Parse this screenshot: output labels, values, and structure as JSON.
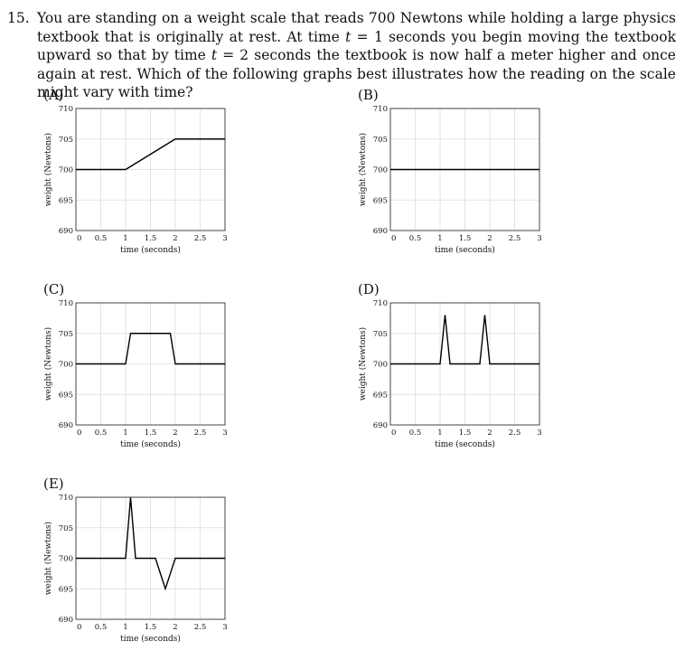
{
  "question": {
    "number": "15.",
    "text_parts": [
      "You are standing on a weight scale that reads 700 Newtons while holding a large physics textbook that is originally at rest. At time ",
      "t",
      " = 1 seconds you begin moving the textbook upward so that by time ",
      "t",
      " = 2 seconds the textbook is now half a meter higher and once again at rest. Which of the following graphs best illustrates how the reading on the scale might vary with time?"
    ]
  },
  "chart_data": [
    {
      "label": "(A)",
      "type": "line",
      "xlabel": "time (seconds)",
      "ylabel": "weight (Newtons)",
      "xlim": [
        0,
        3
      ],
      "ylim": [
        690,
        710
      ],
      "x_ticks": [
        "0",
        "0.5",
        "1",
        "1.5",
        "2",
        "2.5",
        "3"
      ],
      "y_ticks": [
        "690",
        "695",
        "700",
        "705",
        "710"
      ],
      "grid": true,
      "x": [
        0,
        1,
        2,
        3
      ],
      "y": [
        700,
        700,
        705,
        705
      ]
    },
    {
      "label": "(B)",
      "type": "line",
      "xlabel": "time (seconds)",
      "ylabel": "weight (Newtons)",
      "xlim": [
        0,
        3
      ],
      "ylim": [
        690,
        710
      ],
      "x_ticks": [
        "0",
        "0.5",
        "1",
        "1.5",
        "2",
        "2.5",
        "3"
      ],
      "y_ticks": [
        "690",
        "695",
        "700",
        "705",
        "710"
      ],
      "grid": true,
      "x": [
        0,
        3
      ],
      "y": [
        700,
        700
      ]
    },
    {
      "label": "(C)",
      "type": "line",
      "xlabel": "time (seconds)",
      "ylabel": "weight (Newtons)",
      "xlim": [
        0,
        3
      ],
      "ylim": [
        690,
        710
      ],
      "x_ticks": [
        "0",
        "0.5",
        "1",
        "1.5",
        "2",
        "2.5",
        "3"
      ],
      "y_ticks": [
        "690",
        "695",
        "700",
        "705",
        "710"
      ],
      "grid": true,
      "x": [
        0,
        1,
        1.1,
        1.9,
        2,
        3
      ],
      "y": [
        700,
        700,
        705,
        705,
        700,
        700
      ]
    },
    {
      "label": "(D)",
      "type": "line",
      "xlabel": "time (seconds)",
      "ylabel": "weight (Newtons)",
      "xlim": [
        0,
        3
      ],
      "ylim": [
        690,
        710
      ],
      "x_ticks": [
        "0",
        "0.5",
        "1",
        "1.5",
        "2",
        "2.5",
        "3"
      ],
      "y_ticks": [
        "690",
        "695",
        "700",
        "705",
        "710"
      ],
      "grid": true,
      "x": [
        0,
        1,
        1.1,
        1.2,
        1.8,
        1.9,
        2,
        3
      ],
      "y": [
        700,
        700,
        708,
        700,
        700,
        708,
        700,
        700
      ]
    },
    {
      "label": "(E)",
      "type": "line",
      "xlabel": "time (seconds)",
      "ylabel": "weight (Newtons)",
      "xlim": [
        0,
        3
      ],
      "ylim": [
        690,
        710
      ],
      "x_ticks": [
        "0",
        "0.5",
        "1",
        "1.5",
        "2",
        "2.5",
        "3"
      ],
      "y_ticks": [
        "690",
        "695",
        "700",
        "705",
        "710"
      ],
      "grid": true,
      "x": [
        0,
        1,
        1.1,
        1.2,
        1.6,
        1.8,
        2,
        3
      ],
      "y": [
        700,
        700,
        710,
        700,
        700,
        695,
        700,
        700
      ]
    }
  ]
}
